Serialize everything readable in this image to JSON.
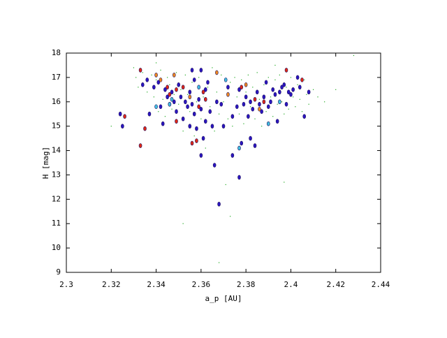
{
  "chart_data": {
    "type": "scatter",
    "xlabel": "a_p [AU]",
    "ylabel": "H [mag]",
    "xlim": [
      2.3,
      2.44
    ],
    "xticks": [
      2.3,
      2.32,
      2.34,
      2.36,
      2.38,
      2.4,
      2.42,
      2.44
    ],
    "ylim": [
      9,
      18
    ],
    "yticks": [
      9,
      10,
      11,
      12,
      13,
      14,
      15,
      16,
      17,
      18
    ],
    "series": [
      {
        "color": "#22aa22",
        "size": "small",
        "x": [
          2.33,
          2.331,
          2.332,
          2.334,
          2.336,
          2.338,
          2.339,
          2.34,
          2.341,
          2.342,
          2.343,
          2.344,
          2.345,
          2.346,
          2.347,
          2.348,
          2.349,
          2.35,
          2.351,
          2.352,
          2.353,
          2.354,
          2.355,
          2.356,
          2.357,
          2.358,
          2.359,
          2.36,
          2.361,
          2.362,
          2.363,
          2.364,
          2.365,
          2.366,
          2.367,
          2.368,
          2.369,
          2.37,
          2.371,
          2.372,
          2.373,
          2.374,
          2.375,
          2.376,
          2.377,
          2.378,
          2.379,
          2.38,
          2.381,
          2.382,
          2.383,
          2.384,
          2.385,
          2.386,
          2.387,
          2.388,
          2.389,
          2.39,
          2.391,
          2.392,
          2.393,
          2.394,
          2.395,
          2.396,
          2.397,
          2.398,
          2.399,
          2.4,
          2.401,
          2.402,
          2.403,
          2.404,
          2.405,
          2.406,
          2.407,
          2.408,
          2.41,
          2.412,
          2.415,
          2.42,
          2.428,
          2.368,
          2.373,
          2.32,
          2.397,
          2.352,
          2.34,
          2.393
        ],
        "values": [
          17.4,
          17.0,
          16.6,
          17.2,
          16.4,
          17.1,
          16.2,
          16.9,
          15.6,
          17.3,
          16.1,
          15.4,
          17.0,
          16.7,
          15.7,
          16.3,
          17.2,
          15.9,
          16.5,
          14.8,
          17.1,
          16.3,
          15.6,
          16.8,
          14.6,
          16.0,
          17.0,
          15.3,
          16.2,
          14.1,
          16.6,
          15.8,
          17.4,
          14.8,
          16.4,
          15.5,
          17.1,
          16.0,
          12.6,
          15.3,
          16.8,
          15.0,
          17.0,
          16.2,
          15.5,
          16.9,
          15.1,
          16.4,
          17.1,
          15.8,
          16.6,
          15.3,
          17.2,
          16.1,
          15.0,
          16.7,
          15.6,
          17.0,
          16.2,
          15.4,
          16.9,
          15.9,
          17.1,
          16.0,
          15.5,
          16.6,
          15.7,
          17.0,
          16.2,
          15.8,
          16.7,
          16.1,
          15.6,
          16.9,
          16.3,
          15.9,
          16.5,
          16.2,
          16.0,
          16.5,
          17.9,
          9.4,
          11.3,
          15.0,
          12.7,
          11.0,
          17.6,
          17.5
        ]
      },
      {
        "color": "#2a16c0",
        "size": "large",
        "x": [
          2.334,
          2.336,
          2.337,
          2.339,
          2.341,
          2.342,
          2.343,
          2.344,
          2.345,
          2.346,
          2.347,
          2.348,
          2.349,
          2.35,
          2.351,
          2.352,
          2.353,
          2.354,
          2.355,
          2.355,
          2.356,
          2.357,
          2.357,
          2.358,
          2.359,
          2.36,
          2.36,
          2.361,
          2.362,
          2.362,
          2.363,
          2.364,
          2.365,
          2.366,
          2.367,
          2.368,
          2.369,
          2.37,
          2.372,
          2.374,
          2.376,
          2.377,
          2.377,
          2.378,
          2.379,
          2.38,
          2.381,
          2.382,
          2.382,
          2.383,
          2.384,
          2.385,
          2.386,
          2.387,
          2.388,
          2.389,
          2.39,
          2.391,
          2.392,
          2.393,
          2.394,
          2.395,
          2.396,
          2.397,
          2.398,
          2.399,
          2.4,
          2.401,
          2.403,
          2.404,
          2.406,
          2.408,
          2.324,
          2.325,
          2.36,
          2.356,
          2.374
        ],
        "values": [
          16.7,
          16.9,
          15.5,
          16.6,
          16.8,
          15.8,
          15.1,
          16.5,
          16.2,
          15.9,
          16.4,
          16.0,
          15.6,
          16.7,
          16.2,
          15.3,
          16.0,
          15.8,
          15.0,
          16.4,
          15.9,
          16.9,
          15.5,
          14.9,
          16.1,
          15.7,
          13.8,
          14.5,
          16.5,
          15.2,
          16.8,
          15.6,
          15.0,
          13.4,
          16.0,
          11.8,
          15.9,
          15.0,
          16.6,
          15.4,
          15.8,
          16.5,
          12.9,
          14.3,
          15.9,
          16.2,
          15.4,
          14.5,
          16.0,
          15.7,
          14.2,
          16.4,
          15.9,
          15.6,
          16.2,
          16.8,
          15.8,
          16.0,
          16.5,
          16.3,
          15.2,
          16.4,
          16.6,
          16.7,
          15.9,
          16.4,
          16.3,
          16.5,
          17.0,
          16.6,
          15.4,
          16.4,
          15.5,
          15.0,
          17.3,
          17.3,
          13.8
        ]
      },
      {
        "color": "#e02814",
        "size": "large",
        "x": [
          2.333,
          2.333,
          2.335,
          2.326,
          2.346,
          2.349,
          2.352,
          2.356,
          2.358,
          2.359,
          2.361,
          2.362,
          2.378,
          2.384,
          2.388,
          2.398,
          2.405,
          2.349,
          2.345
        ],
        "values": [
          17.3,
          14.2,
          14.9,
          15.4,
          16.3,
          15.2,
          16.6,
          14.3,
          14.4,
          15.8,
          16.4,
          16.1,
          16.6,
          16.1,
          16.0,
          17.3,
          16.9,
          16.5,
          16.6
        ]
      },
      {
        "color": "#f08a20",
        "size": "large",
        "x": [
          2.34,
          2.348,
          2.342,
          2.367,
          2.372,
          2.38,
          2.386,
          2.355
        ],
        "values": [
          17.1,
          17.1,
          16.9,
          17.2,
          16.3,
          16.7,
          15.7,
          16.2
        ]
      },
      {
        "color": "#40c0e0",
        "size": "large",
        "x": [
          2.34,
          2.347,
          2.359,
          2.371,
          2.377,
          2.39,
          2.395,
          2.346
        ],
        "values": [
          15.8,
          16.1,
          16.6,
          16.9,
          14.1,
          15.1,
          16.0,
          15.9
        ]
      }
    ]
  }
}
